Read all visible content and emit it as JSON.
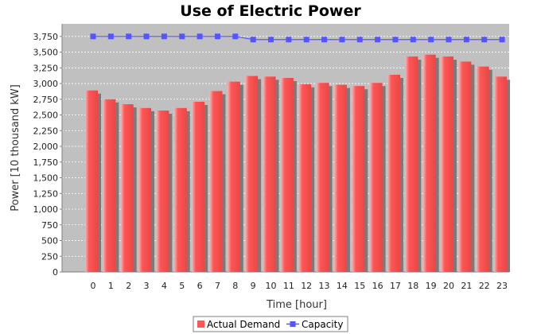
{
  "chart_data": {
    "type": "bar",
    "title": "Use of Electric Power",
    "xlabel": "Time [hour]",
    "ylabel": "Power [10 thousand kW]",
    "ylim": [
      0,
      3950
    ],
    "y_tick_step": 250,
    "grid": true,
    "legend_placement": "bottom",
    "categories": [
      "0",
      "1",
      "2",
      "3",
      "4",
      "5",
      "6",
      "7",
      "8",
      "9",
      "10",
      "11",
      "12",
      "13",
      "14",
      "15",
      "16",
      "17",
      "18",
      "19",
      "20",
      "21",
      "22",
      "23"
    ],
    "series": [
      {
        "name": "Actual Demand",
        "kind": "bar",
        "color": "#ff5555",
        "values": [
          2890,
          2750,
          2670,
          2610,
          2570,
          2610,
          2710,
          2880,
          3030,
          3120,
          3110,
          3090,
          2990,
          3010,
          2980,
          2960,
          3010,
          3140,
          3430,
          3460,
          3430,
          3350,
          3270,
          3110
        ]
      },
      {
        "name": "Capacity",
        "kind": "line",
        "color": "#5555ff",
        "values": [
          3750,
          3750,
          3750,
          3750,
          3750,
          3750,
          3750,
          3750,
          3750,
          3700,
          3700,
          3700,
          3700,
          3700,
          3700,
          3700,
          3700,
          3700,
          3700,
          3700,
          3700,
          3700,
          3700,
          3700
        ]
      }
    ]
  }
}
